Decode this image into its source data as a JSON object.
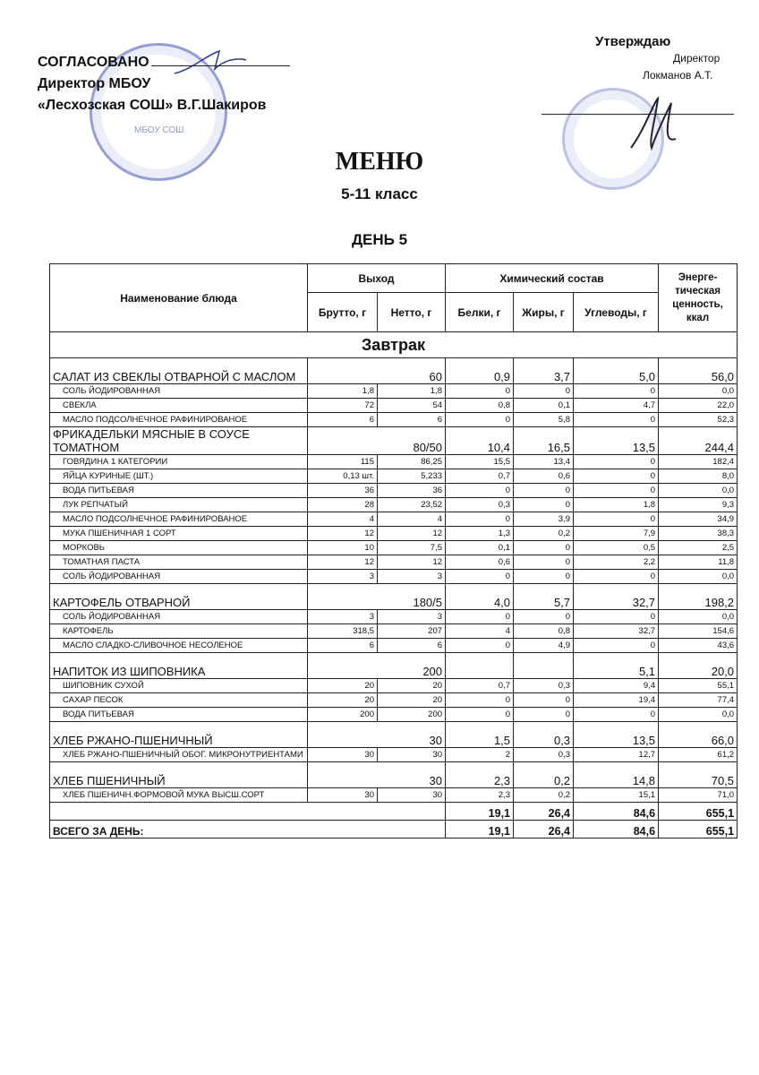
{
  "approval_left": {
    "line1": "СОГЛАСОВАНО",
    "line2": "Директор МБОУ",
    "line3": "«Лесхозская СОШ» В.Г.Шакиров"
  },
  "approval_right": {
    "title": "Утверждаю",
    "role": "Директор",
    "name": "Локманов А.Т."
  },
  "stamp_left_text": "МБОУ СОШ",
  "title": "МЕНЮ",
  "grade": "5-11 класс",
  "day": "ДЕНЬ 5",
  "table": {
    "headers": {
      "name": "Наименование блюда",
      "output": "Выход",
      "chem": "Химический состав",
      "energy": "Энерге-тическая ценность, ккал",
      "gross": "Брутто, г",
      "net": "Нетто, г",
      "protein": "Белки, г",
      "fat": "Жиры, г",
      "carbs": "Углеводы, г"
    },
    "meal": "Завтрак",
    "rows": [
      {
        "type": "dish",
        "name": "САЛАТ ИЗ СВЕКЛЫ ОТВАРНОЙ С МАСЛОМ",
        "output": "60",
        "protein": "0,9",
        "fat": "3,7",
        "carbs": "5,0",
        "energy": "56,0"
      },
      {
        "type": "ing",
        "name": "СОЛЬ  ЙОДИРОВАННАЯ",
        "gross": "1,8",
        "net": "1,8",
        "protein": "0",
        "fat": "0",
        "carbs": "0",
        "energy": "0,0"
      },
      {
        "type": "ing",
        "name": "СВЕКЛА",
        "gross": "72",
        "net": "54",
        "protein": "0,8",
        "fat": "0,1",
        "carbs": "4,7",
        "energy": "22,0"
      },
      {
        "type": "ing",
        "name": "МАСЛО ПОДСОЛНЕЧНОЕ РАФИНИРОВАНОЕ",
        "gross": "6",
        "net": "6",
        "protein": "0",
        "fat": "5,8",
        "carbs": "0",
        "energy": "52,3"
      },
      {
        "type": "dish",
        "name": "ФРИКАДЕЛЬКИ МЯСНЫЕ В СОУСЕ ТОМАТНОМ",
        "output": "80/50",
        "protein": "10,4",
        "fat": "16,5",
        "carbs": "13,5",
        "energy": "244,4"
      },
      {
        "type": "ing",
        "name": "ГОВЯДИНА 1 КАТЕГОРИИ",
        "gross": "115",
        "net": "86,25",
        "protein": "15,5",
        "fat": "13,4",
        "carbs": "0",
        "energy": "182,4"
      },
      {
        "type": "ing",
        "name": "ЯЙЦА КУРИНЫЕ (ШТ.)",
        "gross": "0,13 шт.",
        "net": "5,233",
        "protein": "0,7",
        "fat": "0,6",
        "carbs": "0",
        "energy": "8,0"
      },
      {
        "type": "ing",
        "name": "ВОДА ПИТЬЕВАЯ",
        "gross": "36",
        "net": "36",
        "protein": "0",
        "fat": "0",
        "carbs": "0",
        "energy": "0,0"
      },
      {
        "type": "ing",
        "name": "ЛУК РЕПЧАТЫЙ",
        "gross": "28",
        "net": "23,52",
        "protein": "0,3",
        "fat": "0",
        "carbs": "1,8",
        "energy": "9,3"
      },
      {
        "type": "ing",
        "name": "МАСЛО ПОДСОЛНЕЧНОЕ РАФИНИРОВАНОЕ",
        "gross": "4",
        "net": "4",
        "protein": "0",
        "fat": "3,9",
        "carbs": "0",
        "energy": "34,9"
      },
      {
        "type": "ing",
        "name": "МУКА ПШЕНИЧНАЯ 1 СОРТ",
        "gross": "12",
        "net": "12",
        "protein": "1,3",
        "fat": "0,2",
        "carbs": "7,9",
        "energy": "38,3"
      },
      {
        "type": "ing",
        "name": "МОРКОВЬ",
        "gross": "10",
        "net": "7,5",
        "protein": "0,1",
        "fat": "0",
        "carbs": "0,5",
        "energy": "2,5"
      },
      {
        "type": "ing",
        "name": "ТОМАТНАЯ ПАСТА",
        "gross": "12",
        "net": "12",
        "protein": "0,6",
        "fat": "0",
        "carbs": "2,2",
        "energy": "11,8"
      },
      {
        "type": "ing",
        "name": "СОЛЬ  ЙОДИРОВАННАЯ",
        "gross": "3",
        "net": "3",
        "protein": "0",
        "fat": "0",
        "carbs": "0",
        "energy": "0,0"
      },
      {
        "type": "dish",
        "name": "КАРТОФЕЛЬ ОТВАРНОЙ",
        "output": "180/5",
        "protein": "4,0",
        "fat": "5,7",
        "carbs": "32,7",
        "energy": "198,2"
      },
      {
        "type": "ing",
        "name": "СОЛЬ  ЙОДИРОВАННАЯ",
        "gross": "3",
        "net": "3",
        "protein": "0",
        "fat": "0",
        "carbs": "0",
        "energy": "0,0"
      },
      {
        "type": "ing",
        "name": "КАРТОФЕЛЬ",
        "gross": "318,5",
        "net": "207",
        "protein": "4",
        "fat": "0,8",
        "carbs": "32,7",
        "energy": "154,6"
      },
      {
        "type": "ing",
        "name": "МАСЛО СЛАДКО-СЛИВОЧНОЕ НЕСОЛЕНОЕ",
        "gross": "6",
        "net": "6",
        "protein": "0",
        "fat": "4,9",
        "carbs": "0",
        "energy": "43,6"
      },
      {
        "type": "dish",
        "name": "НАПИТОК ИЗ ШИПОВНИКА",
        "output": "200",
        "protein": "",
        "fat": "",
        "carbs": "5,1",
        "energy": "20,0"
      },
      {
        "type": "ing",
        "name": "ШИПОВНИК СУХОЙ",
        "gross": "20",
        "net": "20",
        "protein": "0,7",
        "fat": "0,3",
        "carbs": "9,4",
        "energy": "55,1"
      },
      {
        "type": "ing",
        "name": "САХАР ПЕСОК",
        "gross": "20",
        "net": "20",
        "protein": "0",
        "fat": "0",
        "carbs": "19,4",
        "energy": "77,4"
      },
      {
        "type": "ing",
        "name": "ВОДА ПИТЬЕВАЯ",
        "gross": "200",
        "net": "200",
        "protein": "0",
        "fat": "0",
        "carbs": "0",
        "energy": "0,0"
      },
      {
        "type": "dish",
        "name": "ХЛЕБ РЖАНО-ПШЕНИЧНЫЙ",
        "output": "30",
        "protein": "1,5",
        "fat": "0,3",
        "carbs": "13,5",
        "energy": "66,0"
      },
      {
        "type": "ing",
        "name": "ХЛЕБ РЖАНО-ПШЕНИЧНЫЙ ОБОГ. МИКРОНУТРИЕНТАМИ",
        "gross": "30",
        "net": "30",
        "protein": "2",
        "fat": "0,3",
        "carbs": "12,7",
        "energy": "61,2"
      },
      {
        "type": "dish",
        "name": "ХЛЕБ ПШЕНИЧНЫЙ",
        "output": "30",
        "protein": "2,3",
        "fat": "0,2",
        "carbs": "14,8",
        "energy": "70,5"
      },
      {
        "type": "ing",
        "name": "ХЛЕБ ПШЕНИЧН.ФОРМОВОЙ МУКА ВЫСШ.СОРТ",
        "gross": "30",
        "net": "30",
        "protein": "2,3",
        "fat": "0,2",
        "carbs": "15,1",
        "energy": "71,0"
      }
    ],
    "meal_total": {
      "protein": "19,1",
      "fat": "26,4",
      "carbs": "84,6",
      "energy": "655,1"
    },
    "day_total": {
      "label": "ВСЕГО ЗА ДЕНЬ:",
      "protein": "19,1",
      "fat": "26,4",
      "carbs": "84,6",
      "energy": "655,1"
    }
  }
}
